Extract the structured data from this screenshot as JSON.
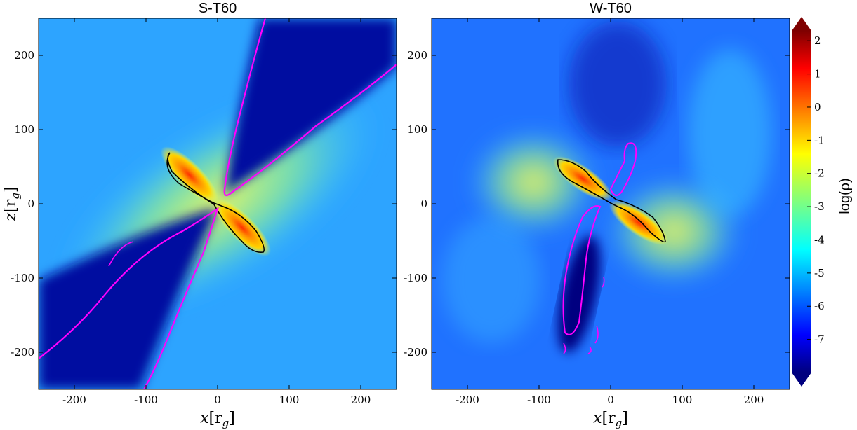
{
  "chart_data": [
    {
      "type": "heatmap",
      "title": "S-T60",
      "xlabel": "x[r_g]",
      "ylabel": "z[r_g]",
      "xlim": [
        -250,
        250
      ],
      "ylim": [
        -250,
        250
      ],
      "xticks": [
        -200,
        -100,
        0,
        100,
        200
      ],
      "yticks": [
        -200,
        -100,
        0,
        100,
        200
      ],
      "disk_tilt_deg": -45,
      "funnel_axis_deg": 55,
      "contours": [
        {
          "color": "#000000",
          "meaning": "disk boundary"
        },
        {
          "color": "#ff00ff",
          "meaning": "funnel boundary"
        }
      ]
    },
    {
      "type": "heatmap",
      "title": "W-T60",
      "xlabel": "x[r_g]",
      "ylabel": "",
      "xlim": [
        -250,
        250
      ],
      "ylim": [
        -250,
        250
      ],
      "xticks": [
        -200,
        -100,
        0,
        100,
        200
      ],
      "yticks": [
        -200,
        -100,
        0,
        100,
        200
      ],
      "disk_tilt_deg": -40,
      "funnel_axis_deg": 70,
      "contours": [
        {
          "color": "#000000",
          "meaning": "disk boundary"
        },
        {
          "color": "#ff00ff",
          "meaning": "funnel boundary"
        }
      ]
    }
  ],
  "colorbar": {
    "label": "log(ρ)",
    "ticks": [
      "2",
      "1",
      "0",
      "-1",
      "-2",
      "-3",
      "-4",
      "-5",
      "-6",
      "-7"
    ],
    "range": [
      -8,
      2.3
    ],
    "colormap": "jet"
  },
  "axis_label_parts": {
    "x_var": "x",
    "z_var": "z",
    "unit_open": "[r",
    "unit_sub": "g",
    "unit_close": "]"
  }
}
